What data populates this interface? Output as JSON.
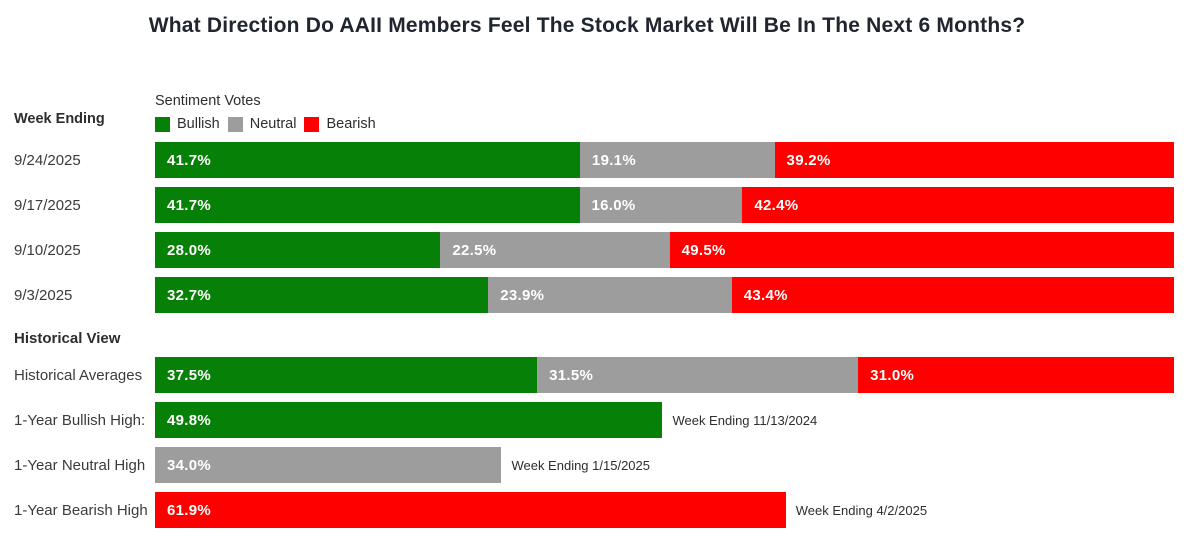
{
  "title": "What Direction Do AAII Members Feel The Stock Market Will Be In The Next 6 Months?",
  "sections": {
    "week_ending_label": "Week Ending",
    "historical_view_label": "Historical View"
  },
  "legend": {
    "heading": "Sentiment Votes",
    "items": [
      {
        "label": "Bullish",
        "color": "#078007"
      },
      {
        "label": "Neutral",
        "color": "#9d9d9d"
      },
      {
        "label": "Bearish",
        "color": "#fe0000"
      }
    ]
  },
  "chart_data": {
    "type": "bar",
    "orientation": "horizontal",
    "stacked": true,
    "unit": "%",
    "xlim": [
      0,
      100
    ],
    "grid": false,
    "legend_position": "top",
    "series_names": [
      "Bullish",
      "Neutral",
      "Bearish"
    ],
    "colors": {
      "Bullish": "#078007",
      "Neutral": "#9d9d9d",
      "Bearish": "#fe0000"
    },
    "weekly_rows": [
      {
        "label": "9/24/2025",
        "segments": [
          {
            "series": "Bullish",
            "value": 41.7
          },
          {
            "series": "Neutral",
            "value": 19.1
          },
          {
            "series": "Bearish",
            "value": 39.2
          }
        ]
      },
      {
        "label": "9/17/2025",
        "segments": [
          {
            "series": "Bullish",
            "value": 41.7
          },
          {
            "series": "Neutral",
            "value": 16.0
          },
          {
            "series": "Bearish",
            "value": 42.4
          }
        ]
      },
      {
        "label": "9/10/2025",
        "segments": [
          {
            "series": "Bullish",
            "value": 28.0
          },
          {
            "series": "Neutral",
            "value": 22.5
          },
          {
            "series": "Bearish",
            "value": 49.5
          }
        ]
      },
      {
        "label": "9/3/2025",
        "segments": [
          {
            "series": "Bullish",
            "value": 32.7
          },
          {
            "series": "Neutral",
            "value": 23.9
          },
          {
            "series": "Bearish",
            "value": 43.4
          }
        ]
      }
    ],
    "historical_rows": [
      {
        "label": "Historical Averages",
        "segments": [
          {
            "series": "Bullish",
            "value": 37.5
          },
          {
            "series": "Neutral",
            "value": 31.5
          },
          {
            "series": "Bearish",
            "value": 31.0
          }
        ]
      },
      {
        "label": "1-Year Bullish High:",
        "segments": [
          {
            "series": "Bullish",
            "value": 49.8
          }
        ],
        "annotation": "Week Ending 11/13/2024"
      },
      {
        "label": "1-Year Neutral High",
        "segments": [
          {
            "series": "Neutral",
            "value": 34.0
          }
        ],
        "annotation": "Week Ending 1/15/2025"
      },
      {
        "label": "1-Year Bearish High",
        "segments": [
          {
            "series": "Bearish",
            "value": 61.9
          }
        ],
        "annotation": "Week Ending 4/2/2025"
      }
    ]
  }
}
